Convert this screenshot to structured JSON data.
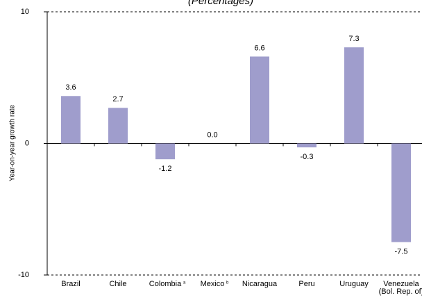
{
  "chart_data": {
    "type": "bar",
    "title": "(Percentages)",
    "y_label": "Year-on-year growth rate",
    "categories": [
      "Brazil",
      "Chile",
      "Colombia",
      "Mexico",
      "Nicaragua",
      "Peru",
      "Uruguay",
      "Venezuela (Bol. Rep. of)"
    ],
    "category_notes": [
      null,
      null,
      "a",
      "b",
      null,
      null,
      null,
      null
    ],
    "values": [
      3.6,
      2.7,
      -1.2,
      0,
      6.6,
      -0.3,
      7.3,
      -7.5
    ],
    "value_labels": [
      "3.6",
      "2.7",
      "-1.2",
      "0.0",
      "6.6",
      "-0.3",
      "7.3",
      "-7.5"
    ],
    "color": "#9f9dcc",
    "ylim": [
      -10,
      10
    ],
    "yticks": [
      -10,
      0,
      10
    ],
    "grid": true
  }
}
